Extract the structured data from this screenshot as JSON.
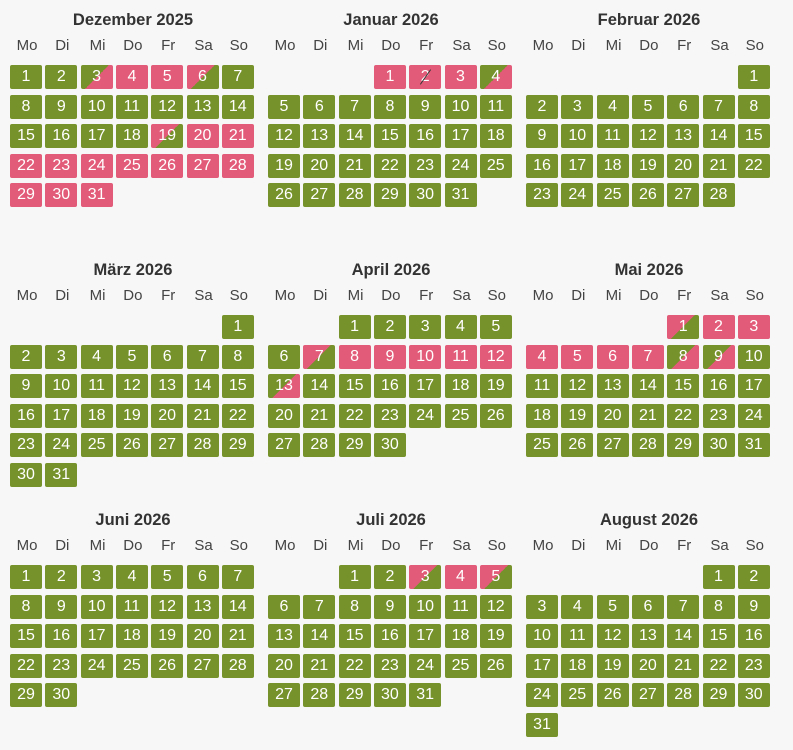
{
  "colors": {
    "available": "#76922b",
    "booked": "#e25b78",
    "background": "#f7f7f7"
  },
  "weekdays": [
    "Mo",
    "Di",
    "Mi",
    "Do",
    "Fr",
    "Sa",
    "So"
  ],
  "months": [
    {
      "title": "Dezember 2025",
      "offset": 0,
      "days": 31,
      "booked": [
        4,
        5,
        20,
        21,
        22,
        23,
        24,
        25,
        26,
        27,
        28,
        29,
        30,
        31
      ],
      "transition_in": [
        6,
        19
      ],
      "transition_out": [
        3
      ],
      "marked": []
    },
    {
      "title": "Januar 2026",
      "offset": 3,
      "days": 31,
      "booked": [
        1,
        2,
        3
      ],
      "transition_in": [],
      "transition_out": [
        4
      ],
      "marked": [
        2
      ]
    },
    {
      "title": "Februar 2026",
      "offset": 6,
      "days": 28,
      "booked": [],
      "transition_in": [],
      "transition_out": [],
      "marked": []
    },
    {
      "title": "März 2026",
      "offset": 6,
      "days": 31,
      "booked": [],
      "transition_in": [],
      "transition_out": [],
      "marked": []
    },
    {
      "title": "April 2026",
      "offset": 2,
      "days": 30,
      "booked": [
        8,
        9,
        10,
        11,
        12
      ],
      "transition_in": [
        7
      ],
      "transition_out": [
        13
      ],
      "marked": []
    },
    {
      "title": "Mai 2026",
      "offset": 4,
      "days": 31,
      "booked": [
        2,
        3,
        4,
        5,
        6,
        7
      ],
      "transition_in": [
        1
      ],
      "transition_out": [
        8,
        9
      ],
      "marked": []
    },
    {
      "title": "Juni 2026",
      "offset": 0,
      "days": 30,
      "booked": [],
      "transition_in": [],
      "transition_out": [],
      "marked": []
    },
    {
      "title": "Juli 2026",
      "offset": 2,
      "days": 31,
      "booked": [
        4
      ],
      "transition_in": [
        3,
        5
      ],
      "transition_out": [],
      "marked": []
    },
    {
      "title": "August 2026",
      "offset": 5,
      "days": 31,
      "booked": [],
      "transition_in": [],
      "transition_out": [],
      "marked": []
    }
  ]
}
